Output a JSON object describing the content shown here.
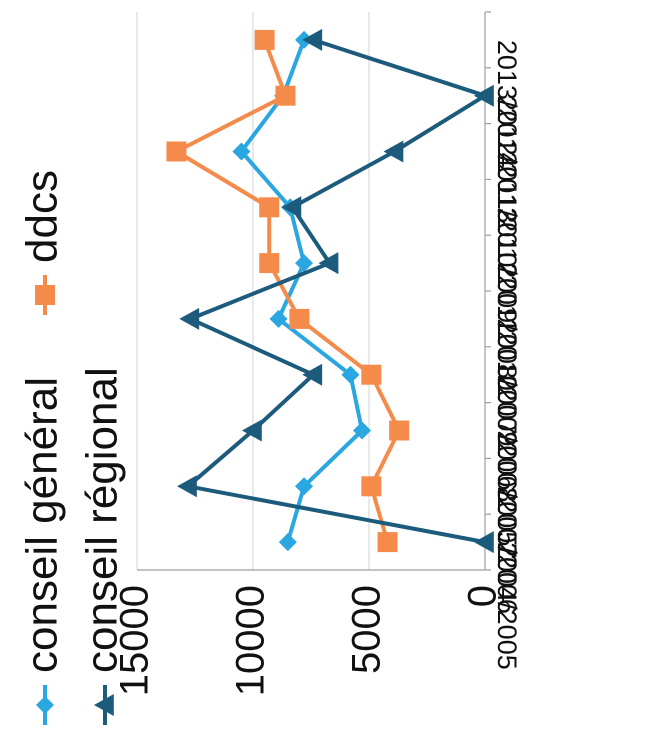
{
  "chart_data": {
    "type": "line",
    "orientation": "rotated-90-clockwise",
    "categories": [
      "2004/2005",
      "2005/2006",
      "2006/2007",
      "2007/2008",
      "2008/2009",
      "2009/2010",
      "2010/2011",
      "2011/2012",
      "2012/2013",
      "2013/2014"
    ],
    "series": [
      {
        "name": "conseil général",
        "color": "#2aa7e0",
        "marker": "diamond",
        "values": [
          8500,
          7800,
          5300,
          5800,
          8900,
          7800,
          8400,
          10500,
          8700,
          7800
        ]
      },
      {
        "name": "ddcs",
        "color": "#f48b4a",
        "marker": "square",
        "values": [
          4200,
          4900,
          3700,
          4900,
          8000,
          9300,
          9300,
          13300,
          8600,
          9500
        ]
      },
      {
        "name": "conseil régional",
        "color": "#1d5b7c",
        "marker": "triangle",
        "values": [
          0,
          12800,
          10000,
          7400,
          12700,
          6700,
          8300,
          3900,
          0,
          7400
        ]
      }
    ],
    "yticks": [
      "0",
      "5000",
      "10000",
      "15000"
    ],
    "ylim": [
      0,
      15000
    ],
    "grid": true,
    "legend_position": "top"
  }
}
